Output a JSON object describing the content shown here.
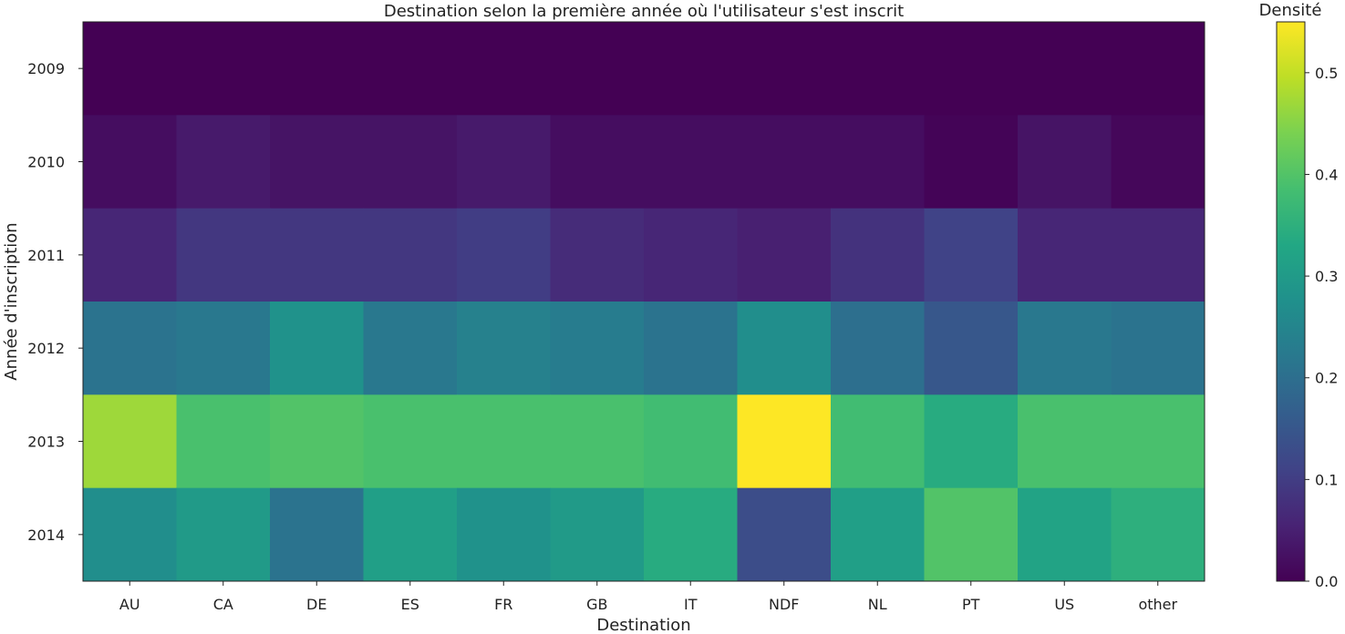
{
  "chart_data": {
    "type": "heatmap",
    "title": "Destination selon la première année où l'utilisateur s'est inscrit",
    "xlabel": "Destination",
    "ylabel": "Année d'inscription",
    "x_categories": [
      "AU",
      "CA",
      "DE",
      "ES",
      "FR",
      "GB",
      "IT",
      "NDF",
      "NL",
      "PT",
      "US",
      "other"
    ],
    "y_categories": [
      "2009",
      "2010",
      "2011",
      "2012",
      "2013",
      "2014"
    ],
    "values": [
      [
        0.0,
        0.0,
        0.0,
        0.0,
        0.0,
        0.0,
        0.0,
        0.0,
        0.0,
        0.0,
        0.0,
        0.0
      ],
      [
        0.02,
        0.04,
        0.03,
        0.03,
        0.04,
        0.02,
        0.02,
        0.02,
        0.02,
        0.005,
        0.03,
        0.01
      ],
      [
        0.06,
        0.09,
        0.09,
        0.09,
        0.1,
        0.07,
        0.06,
        0.05,
        0.08,
        0.11,
        0.06,
        0.06
      ],
      [
        0.21,
        0.22,
        0.28,
        0.22,
        0.24,
        0.23,
        0.21,
        0.27,
        0.2,
        0.15,
        0.22,
        0.21
      ],
      [
        0.47,
        0.39,
        0.4,
        0.39,
        0.39,
        0.39,
        0.38,
        0.55,
        0.38,
        0.34,
        0.39,
        0.39
      ],
      [
        0.27,
        0.3,
        0.21,
        0.31,
        0.28,
        0.3,
        0.34,
        0.13,
        0.31,
        0.4,
        0.32,
        0.35
      ]
    ],
    "colorbar": {
      "label": "Densité",
      "min": 0.0,
      "max": 0.55,
      "ticks": [
        0.0,
        0.1,
        0.2,
        0.3,
        0.4,
        0.5
      ],
      "tick_labels": [
        "0.0",
        "0.1",
        "0.2",
        "0.3",
        "0.4",
        "0.5"
      ],
      "colormap": "viridis"
    }
  }
}
